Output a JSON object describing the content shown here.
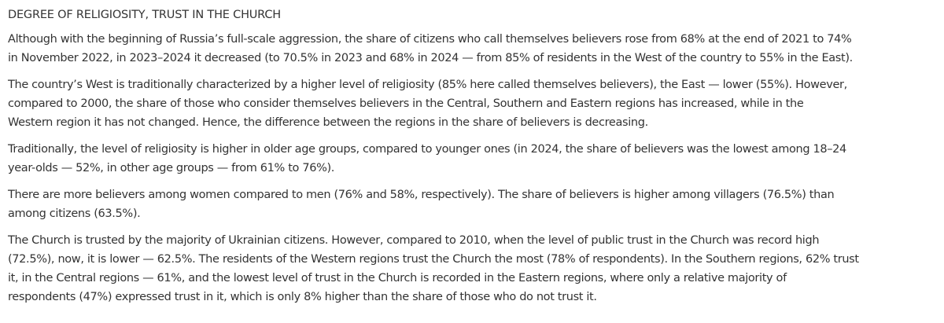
{
  "heading": "DEGREE OF RELIGIOSITY, TRUST IN THE CHURCH",
  "paragraphs": [
    {
      "lines": [
        "Although with the beginning of Russia’s full-scale aggression, the share of citizens who call themselves believers rose from 68% at the end of 2021 to 74%",
        "in November 2022, in 2023–2024 it decreased (to 70.5% in 2023 and 68% in 2024 — from 85% of residents in the West of the country to 55% in the East)."
      ]
    },
    {
      "lines": [
        "The country’s West is traditionally characterized by a higher level of religiosity (85% here called themselves believers), the East — lower (55%). However,",
        "compared to 2000, the share of those who consider themselves believers in the Central, Southern and Eastern regions has increased, while in the",
        "Western region it has not changed. Hence, the difference between the regions in the share of believers is decreasing."
      ]
    },
    {
      "lines": [
        "Traditionally, the level of religiosity is higher in older age groups, compared to younger ones (in 2024, the share of believers was the lowest among 18–24",
        "year-olds — 52%, in other age groups — from 61% to 76%)."
      ]
    },
    {
      "lines": [
        "There are more believers among women compared to men (76% and 58%, respectively). The share of believers is higher among villagers (76.5%) than",
        "among citizens (63.5%)."
      ]
    },
    {
      "lines": [
        "The Church is trusted by the majority of Ukrainian citizens. However, compared to 2010, when the level of public trust in the Church was record high",
        "(72.5%), now, it is lower — 62.5%. The residents of the Western regions trust the Church the most (78% of respondents). In the Southern regions, 62% trust",
        "it, in the Central regions — 61%, and the lowest level of trust in the Church is recorded in the Eastern regions, where only a relative majority of",
        "respondents (47%) expressed trust in it, which is only 8% higher than the share of those who do not trust it."
      ]
    }
  ]
}
